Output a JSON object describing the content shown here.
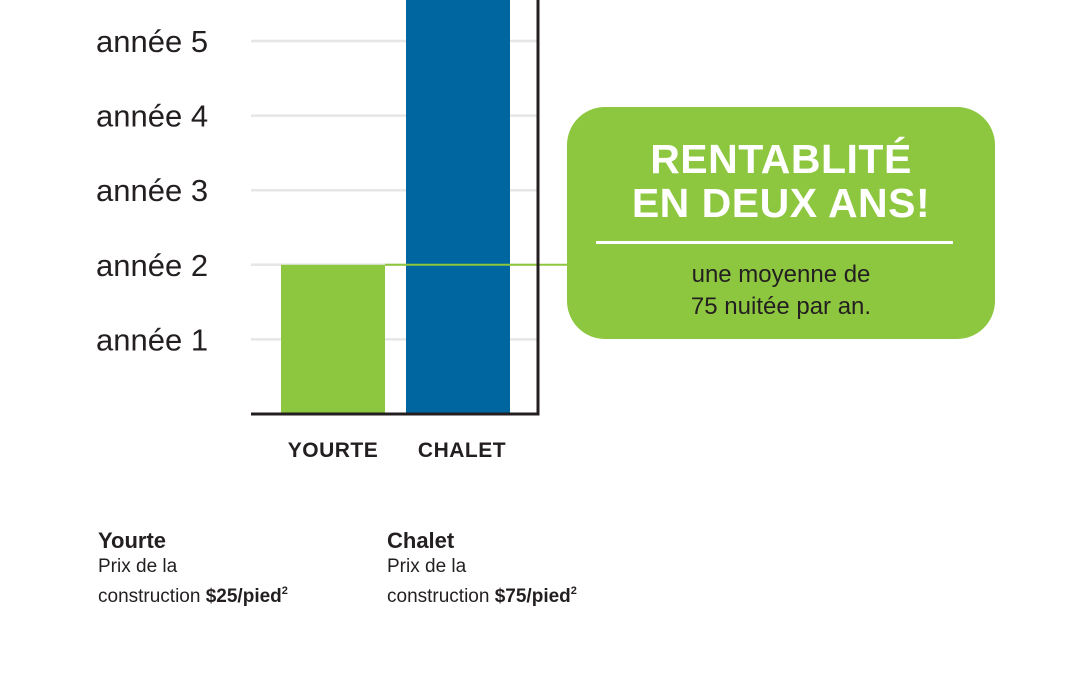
{
  "chart_data": {
    "type": "bar",
    "categories": [
      "YOURTE",
      "CHALET"
    ],
    "values": [
      2,
      5.55
    ],
    "ytick_labels": [
      "année 1",
      "année 2",
      "année 3",
      "année 4",
      "année 5"
    ],
    "ytick_values": [
      1,
      2,
      3,
      4,
      5
    ],
    "ylim": [
      0,
      5.55
    ],
    "grid": true,
    "colors": {
      "yourte": "#8dc63f",
      "chalet": "#00669f",
      "grid": "#e6e6e6",
      "axis": "#231f20"
    }
  },
  "callout": {
    "headline": [
      "RENTABLITÉ",
      "EN DEUX ANS!"
    ],
    "subtext": [
      "une moyenne de",
      "75 nuitée par an."
    ],
    "color": "#8dc63f"
  },
  "notes": [
    {
      "title": "Yourte",
      "line1": "Prix de la",
      "line2_prefix": "construction ",
      "price": "$25/pied",
      "sup": "2"
    },
    {
      "title": "Chalet",
      "line1": "Prix de la",
      "line2_prefix": "construction ",
      "price": "$75/pied",
      "sup": "2"
    }
  ]
}
